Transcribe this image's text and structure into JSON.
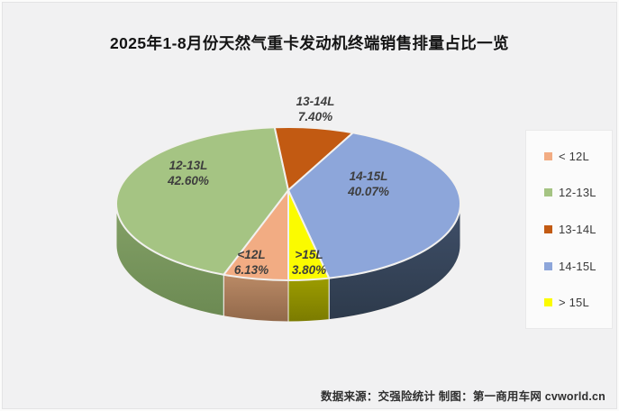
{
  "canvas": {
    "background": "#F1F1F2"
  },
  "chart_data": {
    "type": "pie",
    "three_d": true,
    "title": "2025年1-8月份天然气重卡发动机终端销售排量占比一览",
    "start_angle_deg": 180,
    "direction": "clockwise",
    "legend_position": "right",
    "series": [
      {
        "name": "< 12L",
        "slice_label": "<12L",
        "value": 6.13,
        "pct_label": "6.13%",
        "color": "#F2AC83",
        "side_color_light": "#BA8A66",
        "side_color": "#91684A",
        "label_inside": true
      },
      {
        "name": "12-13L",
        "slice_label": "12-13L",
        "value": 42.6,
        "pct_label": "42.60%",
        "color": "#A5C483",
        "side_color_light": "#84A167",
        "side_color": "#6C8A53",
        "label_inside": true
      },
      {
        "name": "13-14L",
        "slice_label": "13-14L",
        "value": 7.4,
        "pct_label": "7.40%",
        "color": "#C25A12",
        "side_color_light": "#A1470D",
        "side_color": "#8C3F0C",
        "label_inside": false
      },
      {
        "name": "14-15L",
        "slice_label": "14-15L",
        "value": 40.07,
        "pct_label": "40.07%",
        "color": "#8DA6DA",
        "side_color_light": "#40506A",
        "side_color": "#2D3A4B",
        "label_inside": true
      },
      {
        "name": "> 15L",
        "slice_label": ">15L",
        "value": 3.8,
        "pct_label": "3.80%",
        "color": "#FBFB00",
        "side_color_light": "#9C9C00",
        "side_color": "#7B7B00",
        "label_inside": true
      }
    ],
    "source_note": "数据来源：交强险统计 制图：第一商用车网 cvworld.cn"
  }
}
